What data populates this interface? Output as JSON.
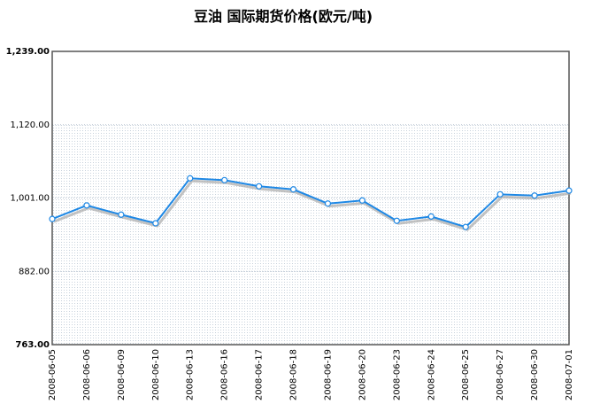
{
  "chart_data": {
    "type": "line",
    "title": "豆油  国际期货价格(欧元/吨)",
    "categories": [
      "2008-06-05",
      "2008-06-06",
      "2008-06-09",
      "2008-06-10",
      "2008-06-13",
      "2008-06-16",
      "2008-06-17",
      "2008-06-18",
      "2008-06-19",
      "2008-06-20",
      "2008-06-23",
      "2008-06-24",
      "2008-06-25",
      "2008-06-27",
      "2008-06-30",
      "2008-07-01"
    ],
    "values": [
      967,
      989,
      974,
      960,
      1033,
      1030,
      1020,
      1015,
      992,
      997,
      964,
      971,
      954,
      1007,
      1005,
      1013
    ],
    "color": "#1e88e5",
    "ylim": [
      763,
      1239
    ],
    "yticks": [
      {
        "value": 763,
        "label": "763.00"
      },
      {
        "value": 882,
        "label": "882.00"
      },
      {
        "value": 1001,
        "label": "1,001.00"
      },
      {
        "value": 1120,
        "label": "1,120.00"
      },
      {
        "value": 1239,
        "label": "1,239.00"
      }
    ],
    "grid": true
  }
}
